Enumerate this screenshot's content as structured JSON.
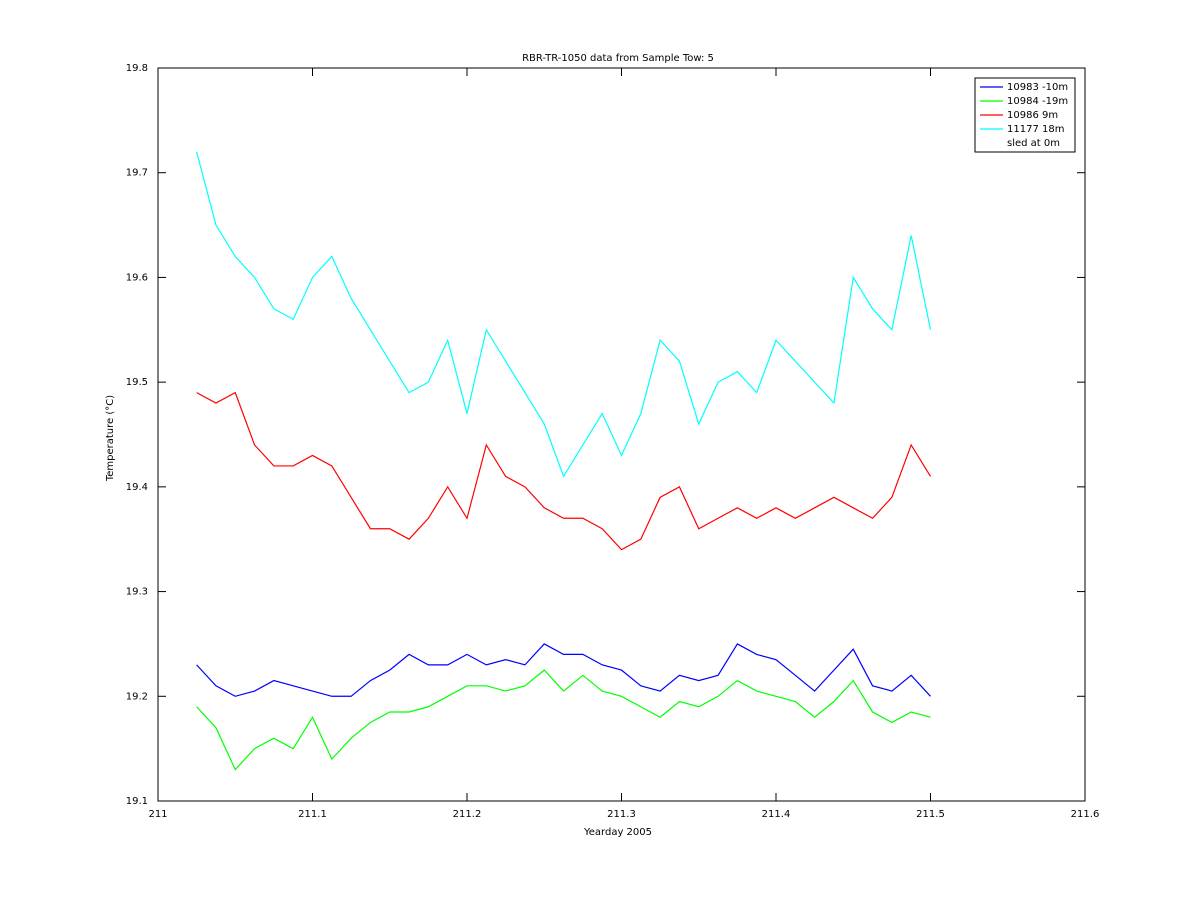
{
  "chart_data": {
    "type": "line",
    "title": "RBR-TR-1050 data from Sample Tow: 5",
    "xlabel": "Yearday 2005",
    "ylabel": "Temperature (°C)",
    "x": [
      211.025,
      211.0375,
      211.05,
      211.0625,
      211.075,
      211.0875,
      211.1,
      211.1125,
      211.125,
      211.1375,
      211.15,
      211.1625,
      211.175,
      211.1875,
      211.2,
      211.2125,
      211.225,
      211.2375,
      211.25,
      211.2625,
      211.275,
      211.2875,
      211.3,
      211.3125,
      211.325,
      211.3375,
      211.35,
      211.3625,
      211.375,
      211.3875,
      211.4,
      211.4125,
      211.425,
      211.4375,
      211.45,
      211.4625,
      211.475,
      211.4875,
      211.5
    ],
    "series": [
      {
        "name": "10983 -10m",
        "color": "#0000ff",
        "values": [
          19.23,
          19.21,
          19.2,
          19.205,
          19.215,
          19.21,
          19.205,
          19.2,
          19.2,
          19.215,
          19.225,
          19.24,
          19.23,
          19.23,
          19.24,
          19.23,
          19.235,
          19.23,
          19.25,
          19.24,
          19.24,
          19.23,
          19.225,
          19.21,
          19.205,
          19.22,
          19.215,
          19.22,
          19.25,
          19.24,
          19.235,
          19.22,
          19.205,
          19.225,
          19.245,
          19.21,
          19.205,
          19.22,
          19.2
        ]
      },
      {
        "name": "10984 -19m",
        "color": "#00ff00",
        "values": [
          19.19,
          19.17,
          19.13,
          19.15,
          19.16,
          19.15,
          19.18,
          19.14,
          19.16,
          19.175,
          19.185,
          19.185,
          19.19,
          19.2,
          19.21,
          19.21,
          19.205,
          19.21,
          19.225,
          19.205,
          19.22,
          19.205,
          19.2,
          19.19,
          19.18,
          19.195,
          19.19,
          19.2,
          19.215,
          19.205,
          19.2,
          19.195,
          19.18,
          19.195,
          19.215,
          19.185,
          19.175,
          19.185,
          19.18
        ]
      },
      {
        "name": "10986 9m",
        "color": "#ff0000",
        "values": [
          19.49,
          19.48,
          19.49,
          19.44,
          19.42,
          19.42,
          19.43,
          19.42,
          19.39,
          19.36,
          19.36,
          19.35,
          19.37,
          19.4,
          19.37,
          19.44,
          19.41,
          19.4,
          19.38,
          19.37,
          19.37,
          19.36,
          19.34,
          19.35,
          19.39,
          19.4,
          19.36,
          19.37,
          19.38,
          19.37,
          19.38,
          19.37,
          19.38,
          19.39,
          19.38,
          19.37,
          19.39,
          19.44,
          19.41
        ]
      },
      {
        "name": "11177 18m",
        "color": "#00ffff",
        "values": [
          19.72,
          19.65,
          19.62,
          19.6,
          19.57,
          19.56,
          19.6,
          19.62,
          19.58,
          19.55,
          19.52,
          19.49,
          19.5,
          19.54,
          19.47,
          19.55,
          19.52,
          19.49,
          19.46,
          19.41,
          19.44,
          19.47,
          19.43,
          19.47,
          19.54,
          19.52,
          19.46,
          19.5,
          19.51,
          19.49,
          19.54,
          19.52,
          19.5,
          19.48,
          19.6,
          19.57,
          19.55,
          19.64,
          19.55
        ]
      }
    ],
    "legend_note": "sled at 0m",
    "legend": "upper right",
    "xlim": [
      211,
      211.6
    ],
    "xticks": [
      211,
      211.1,
      211.2,
      211.3,
      211.4,
      211.5,
      211.6
    ],
    "ylim": [
      19.1,
      19.8
    ],
    "yticks": [
      19.1,
      19.2,
      19.3,
      19.4,
      19.5,
      19.6,
      19.7,
      19.8
    ],
    "grid": false
  }
}
